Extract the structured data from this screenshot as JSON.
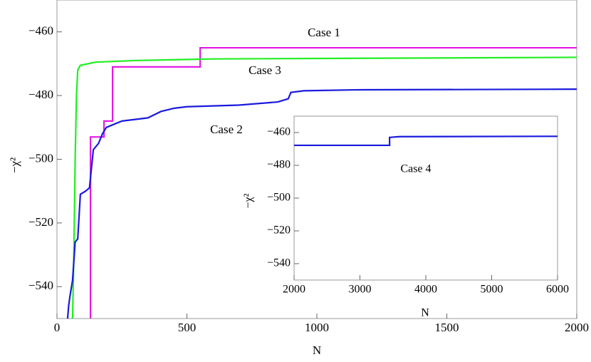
{
  "chart_data": [
    {
      "type": "line",
      "xlabel": "N",
      "ylabel": "−χ²",
      "xlim": [
        0,
        2000
      ],
      "ylim": [
        -550,
        -450
      ],
      "xticks": [
        0,
        500,
        1000,
        1500,
        2000
      ],
      "yticks": [
        {
          "value": -540,
          "label": "−540"
        },
        {
          "value": -520,
          "label": "−520"
        },
        {
          "value": -500,
          "label": "−500"
        },
        {
          "value": -480,
          "label": "−480"
        },
        {
          "value": -460,
          "label": "−460"
        }
      ],
      "annotations": [
        "Case 1",
        "Case 3",
        "Case 2"
      ],
      "series": [
        {
          "name": "Case 1",
          "color": "#e21be2",
          "x": [
            129,
            129,
            145,
            181,
            181,
            186,
            214,
            214,
            551,
            551,
            2000
          ],
          "values": [
            -550,
            -493,
            -493,
            -493,
            -488,
            -488,
            -488,
            -471,
            -471,
            -465,
            -465
          ]
        },
        {
          "name": "Case 3",
          "color": "#22ee22",
          "x": [
            60,
            65,
            70,
            75,
            80,
            90,
            120,
            150,
            300,
            600,
            2000
          ],
          "values": [
            -550,
            -530,
            -500,
            -480,
            -472,
            -470.5,
            -470,
            -469.5,
            -469,
            -468.5,
            -468
          ]
        },
        {
          "name": "Case 2",
          "color": "#1a1add",
          "x": [
            41,
            45,
            50,
            60,
            70,
            80,
            90,
            110,
            125,
            130,
            140,
            160,
            175,
            190,
            250,
            350,
            400,
            450,
            500,
            700,
            850,
            890,
            900,
            950,
            1150,
            2000
          ],
          "values": [
            -550,
            -546,
            -543,
            -538,
            -526,
            -525,
            -511,
            -510,
            -509,
            -505,
            -497,
            -495,
            -492,
            -490,
            -488,
            -487,
            -485,
            -484,
            -483.5,
            -483,
            -482,
            -481,
            -479,
            -478.5,
            -478.2,
            -478
          ]
        }
      ]
    },
    {
      "type": "line",
      "xlabel": "N",
      "ylabel": "−χ²",
      "xlim": [
        2000,
        6000
      ],
      "ylim": [
        -550,
        -450
      ],
      "xticks": [
        2000,
        3000,
        4000,
        5000,
        6000
      ],
      "yticks": [
        {
          "value": -540,
          "label": "−540"
        },
        {
          "value": -520,
          "label": "−520"
        },
        {
          "value": -500,
          "label": "−500"
        },
        {
          "value": -480,
          "label": "−480"
        },
        {
          "value": -460,
          "label": "−460"
        }
      ],
      "annotations": [
        "Case 4"
      ],
      "series": [
        {
          "name": "Case 4",
          "color": "#1a1add",
          "x": [
            2000,
            3450,
            3450,
            3500,
            3600,
            6000
          ],
          "values": [
            -467.8,
            -467.8,
            -463,
            -462.8,
            -462.5,
            -462.3
          ]
        }
      ]
    }
  ]
}
